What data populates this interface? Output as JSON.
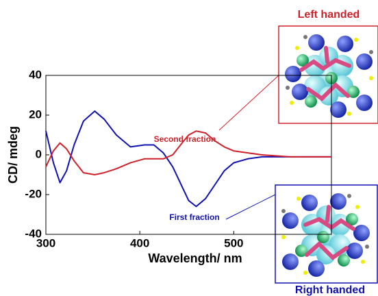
{
  "chart_data": {
    "type": "line",
    "x_label": "Wavelength/ nm",
    "y_label": "CD/ mdeg",
    "x": [
      300,
      308,
      315,
      322,
      330,
      340,
      352,
      362,
      375,
      390,
      405,
      415,
      425,
      435,
      445,
      452,
      460,
      470,
      480,
      490,
      500,
      515,
      530,
      560,
      604
    ],
    "series": [
      {
        "name": "First fraction",
        "color": "#1010b0",
        "values": [
          12,
          -4,
          -14,
          -8,
          5,
          17,
          22,
          18,
          10,
          4,
          5,
          5,
          1,
          -6,
          -16,
          -23,
          -26,
          -22,
          -15,
          -8,
          -4,
          -2,
          -1,
          -1,
          -1
        ]
      },
      {
        "name": "Second fraction",
        "color": "#d0202a",
        "values": [
          -6,
          2,
          6,
          3,
          -3,
          -9,
          -10,
          -9,
          -7,
          -4,
          -2,
          -2,
          -2,
          0,
          6,
          10,
          12,
          11,
          7,
          4,
          2,
          1,
          0,
          -1,
          -1
        ]
      }
    ],
    "xlim": [
      300,
      604
    ],
    "ylim": [
      -40,
      40
    ],
    "xticks": [
      300,
      400,
      500
    ],
    "yticks": [
      -40,
      -20,
      0,
      20,
      40
    ],
    "insets": [
      {
        "label": "Left handed",
        "color": "#d0202a"
      },
      {
        "label": "Right handed",
        "color": "#1010b0"
      }
    ]
  }
}
